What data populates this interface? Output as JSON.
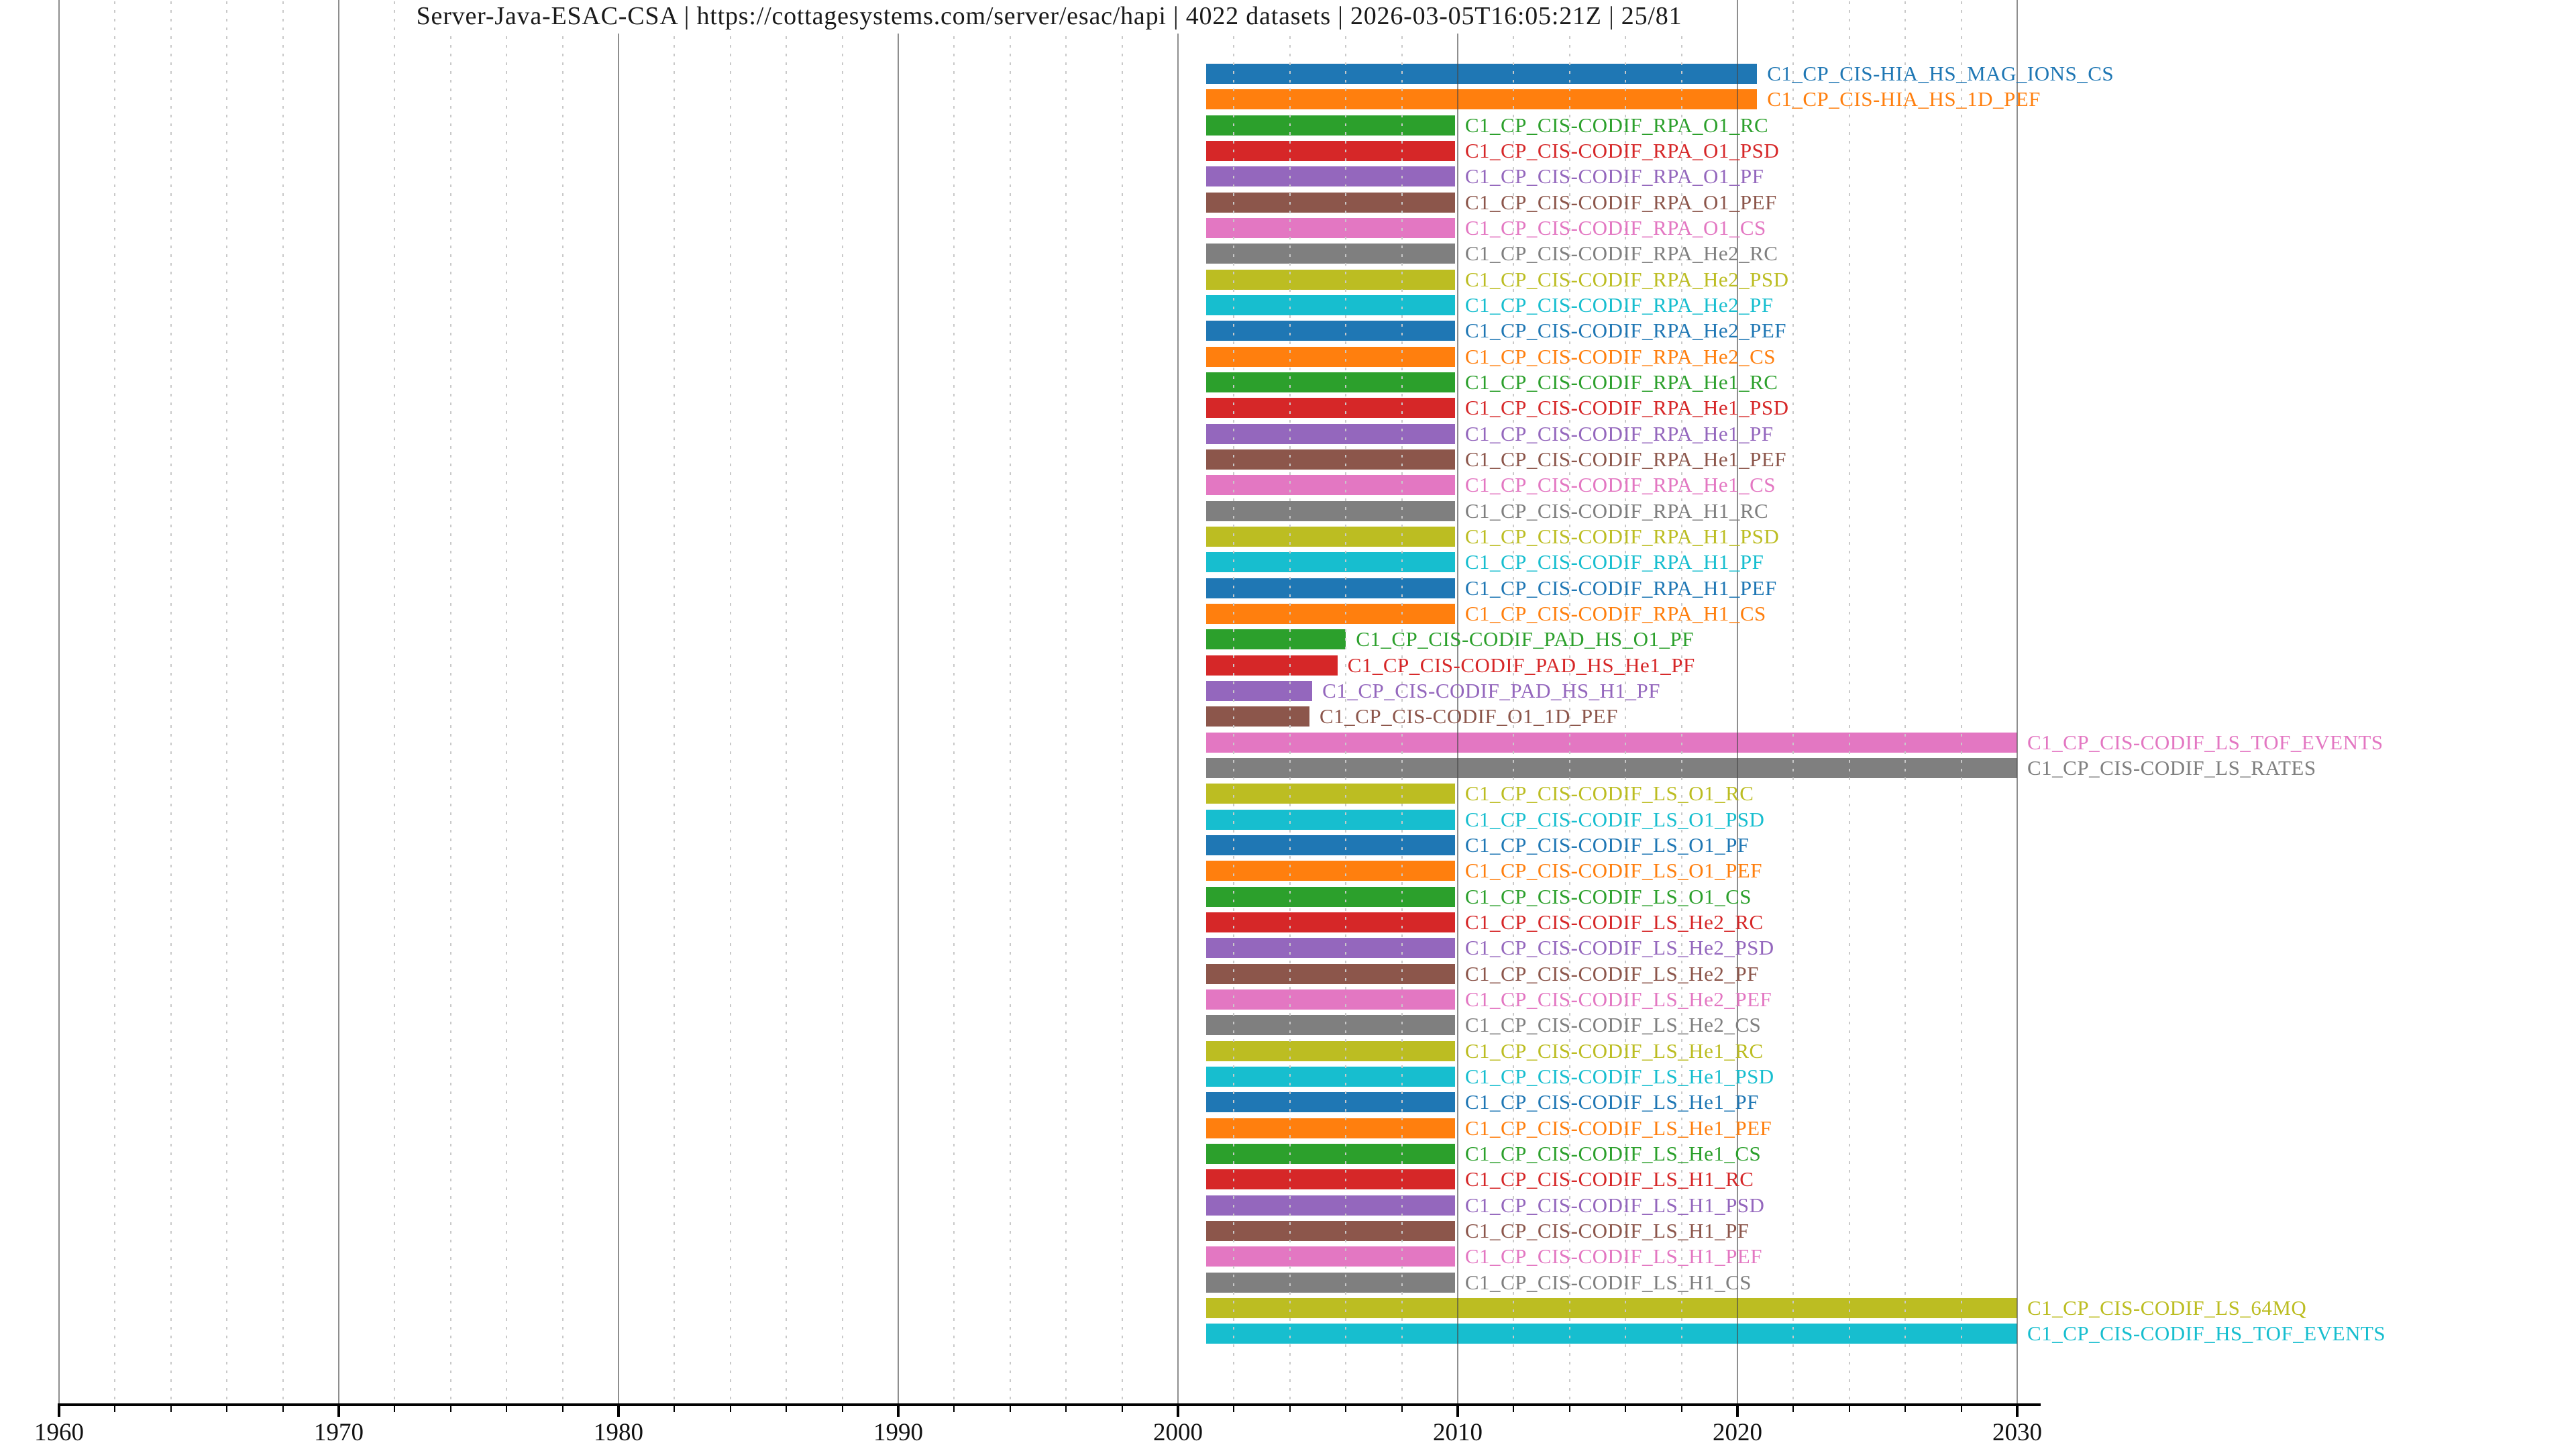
{
  "title": {
    "text": "Server-Java-ESAC-CSA | https://cottagesystems.com/server/esac/hapi | 4022 datasets | 2026-03-05T16:05:21Z | 25/81",
    "server_id": "Server-Java-ESAC-CSA",
    "server_url": "https://cottagesystems.com/server/esac/hapi",
    "dataset_count": "4022 datasets",
    "generated_timestamp": "2026-03-05T16:05:21Z",
    "page_indicator": "25/81"
  },
  "chart_data": {
    "type": "timeline",
    "title": "Server-Java-ESAC-CSA | https://cottagesystems.com/server/esac/hapi | 4022 datasets | 2026-03-05T16:05:21Z | 25/81",
    "xlabel": "",
    "ylabel": "",
    "x_axis": {
      "unit": "year",
      "range_start": 1960,
      "range_end": 2030.8,
      "major_tick_step": 10,
      "minor_tick_step": 2,
      "grid": "major solid gray, minor dotted light-gray"
    },
    "x_ticks": [
      {
        "year": 1960,
        "label": "1960"
      },
      {
        "year": 1970,
        "label": "1970"
      },
      {
        "year": 1980,
        "label": "1980"
      },
      {
        "year": 1990,
        "label": "1990"
      },
      {
        "year": 2000,
        "label": "2000"
      },
      {
        "year": 2010,
        "label": "2010"
      },
      {
        "year": 2020,
        "label": "2020"
      },
      {
        "year": 2030,
        "label": "2030"
      }
    ],
    "legend_position": "none",
    "bar_label_position": "right-of-bar, colored same as bar",
    "palette": [
      "#1f77b4",
      "#ff7f0e",
      "#2ca02c",
      "#d62728",
      "#9467bd",
      "#8c564b",
      "#e377c2",
      "#7f7f7f",
      "#bcbd22",
      "#17becf"
    ],
    "rows": [
      {
        "name": "C1_CP_CIS-HIA_HS_MAG_IONS_CS",
        "start": 2001.0,
        "end": 2020.7,
        "color": "#1f77b4"
      },
      {
        "name": "C1_CP_CIS-HIA_HS_1D_PEF",
        "start": 2001.0,
        "end": 2020.7,
        "color": "#ff7f0e"
      },
      {
        "name": "C1_CP_CIS-CODIF_RPA_O1_RC",
        "start": 2001.0,
        "end": 2009.9,
        "color": "#2ca02c"
      },
      {
        "name": "C1_CP_CIS-CODIF_RPA_O1_PSD",
        "start": 2001.0,
        "end": 2009.9,
        "color": "#d62728"
      },
      {
        "name": "C1_CP_CIS-CODIF_RPA_O1_PF",
        "start": 2001.0,
        "end": 2009.9,
        "color": "#9467bd"
      },
      {
        "name": "C1_CP_CIS-CODIF_RPA_O1_PEF",
        "start": 2001.0,
        "end": 2009.9,
        "color": "#8c564b"
      },
      {
        "name": "C1_CP_CIS-CODIF_RPA_O1_CS",
        "start": 2001.0,
        "end": 2009.9,
        "color": "#e377c2"
      },
      {
        "name": "C1_CP_CIS-CODIF_RPA_He2_RC",
        "start": 2001.0,
        "end": 2009.9,
        "color": "#7f7f7f"
      },
      {
        "name": "C1_CP_CIS-CODIF_RPA_He2_PSD",
        "start": 2001.0,
        "end": 2009.9,
        "color": "#bcbd22"
      },
      {
        "name": "C1_CP_CIS-CODIF_RPA_He2_PF",
        "start": 2001.0,
        "end": 2009.9,
        "color": "#17becf"
      },
      {
        "name": "C1_CP_CIS-CODIF_RPA_He2_PEF",
        "start": 2001.0,
        "end": 2009.9,
        "color": "#1f77b4"
      },
      {
        "name": "C1_CP_CIS-CODIF_RPA_He2_CS",
        "start": 2001.0,
        "end": 2009.9,
        "color": "#ff7f0e"
      },
      {
        "name": "C1_CP_CIS-CODIF_RPA_He1_RC",
        "start": 2001.0,
        "end": 2009.9,
        "color": "#2ca02c"
      },
      {
        "name": "C1_CP_CIS-CODIF_RPA_He1_PSD",
        "start": 2001.0,
        "end": 2009.9,
        "color": "#d62728"
      },
      {
        "name": "C1_CP_CIS-CODIF_RPA_He1_PF",
        "start": 2001.0,
        "end": 2009.9,
        "color": "#9467bd"
      },
      {
        "name": "C1_CP_CIS-CODIF_RPA_He1_PEF",
        "start": 2001.0,
        "end": 2009.9,
        "color": "#8c564b"
      },
      {
        "name": "C1_CP_CIS-CODIF_RPA_He1_CS",
        "start": 2001.0,
        "end": 2009.9,
        "color": "#e377c2"
      },
      {
        "name": "C1_CP_CIS-CODIF_RPA_H1_RC",
        "start": 2001.0,
        "end": 2009.9,
        "color": "#7f7f7f"
      },
      {
        "name": "C1_CP_CIS-CODIF_RPA_H1_PSD",
        "start": 2001.0,
        "end": 2009.9,
        "color": "#bcbd22"
      },
      {
        "name": "C1_CP_CIS-CODIF_RPA_H1_PF",
        "start": 2001.0,
        "end": 2009.9,
        "color": "#17becf"
      },
      {
        "name": "C1_CP_CIS-CODIF_RPA_H1_PEF",
        "start": 2001.0,
        "end": 2009.9,
        "color": "#1f77b4"
      },
      {
        "name": "C1_CP_CIS-CODIF_RPA_H1_CS",
        "start": 2001.0,
        "end": 2009.9,
        "color": "#ff7f0e"
      },
      {
        "name": "C1_CP_CIS-CODIF_PAD_HS_O1_PF",
        "start": 2001.0,
        "end": 2006.0,
        "color": "#2ca02c"
      },
      {
        "name": "C1_CP_CIS-CODIF_PAD_HS_He1_PF",
        "start": 2001.0,
        "end": 2005.7,
        "color": "#d62728"
      },
      {
        "name": "C1_CP_CIS-CODIF_PAD_HS_H1_PF",
        "start": 2001.0,
        "end": 2004.8,
        "color": "#9467bd"
      },
      {
        "name": "C1_CP_CIS-CODIF_O1_1D_PEF",
        "start": 2001.0,
        "end": 2004.7,
        "color": "#8c564b"
      },
      {
        "name": "C1_CP_CIS-CODIF_LS_TOF_EVENTS",
        "start": 2001.0,
        "end": 2030.0,
        "color": "#e377c2"
      },
      {
        "name": "C1_CP_CIS-CODIF_LS_RATES",
        "start": 2001.0,
        "end": 2030.0,
        "color": "#7f7f7f"
      },
      {
        "name": "C1_CP_CIS-CODIF_LS_O1_RC",
        "start": 2001.0,
        "end": 2009.9,
        "color": "#bcbd22"
      },
      {
        "name": "C1_CP_CIS-CODIF_LS_O1_PSD",
        "start": 2001.0,
        "end": 2009.9,
        "color": "#17becf"
      },
      {
        "name": "C1_CP_CIS-CODIF_LS_O1_PF",
        "start": 2001.0,
        "end": 2009.9,
        "color": "#1f77b4"
      },
      {
        "name": "C1_CP_CIS-CODIF_LS_O1_PEF",
        "start": 2001.0,
        "end": 2009.9,
        "color": "#ff7f0e"
      },
      {
        "name": "C1_CP_CIS-CODIF_LS_O1_CS",
        "start": 2001.0,
        "end": 2009.9,
        "color": "#2ca02c"
      },
      {
        "name": "C1_CP_CIS-CODIF_LS_He2_RC",
        "start": 2001.0,
        "end": 2009.9,
        "color": "#d62728"
      },
      {
        "name": "C1_CP_CIS-CODIF_LS_He2_PSD",
        "start": 2001.0,
        "end": 2009.9,
        "color": "#9467bd"
      },
      {
        "name": "C1_CP_CIS-CODIF_LS_He2_PF",
        "start": 2001.0,
        "end": 2009.9,
        "color": "#8c564b"
      },
      {
        "name": "C1_CP_CIS-CODIF_LS_He2_PEF",
        "start": 2001.0,
        "end": 2009.9,
        "color": "#e377c2"
      },
      {
        "name": "C1_CP_CIS-CODIF_LS_He2_CS",
        "start": 2001.0,
        "end": 2009.9,
        "color": "#7f7f7f"
      },
      {
        "name": "C1_CP_CIS-CODIF_LS_He1_RC",
        "start": 2001.0,
        "end": 2009.9,
        "color": "#bcbd22"
      },
      {
        "name": "C1_CP_CIS-CODIF_LS_He1_PSD",
        "start": 2001.0,
        "end": 2009.9,
        "color": "#17becf"
      },
      {
        "name": "C1_CP_CIS-CODIF_LS_He1_PF",
        "start": 2001.0,
        "end": 2009.9,
        "color": "#1f77b4"
      },
      {
        "name": "C1_CP_CIS-CODIF_LS_He1_PEF",
        "start": 2001.0,
        "end": 2009.9,
        "color": "#ff7f0e"
      },
      {
        "name": "C1_CP_CIS-CODIF_LS_He1_CS",
        "start": 2001.0,
        "end": 2009.9,
        "color": "#2ca02c"
      },
      {
        "name": "C1_CP_CIS-CODIF_LS_H1_RC",
        "start": 2001.0,
        "end": 2009.9,
        "color": "#d62728"
      },
      {
        "name": "C1_CP_CIS-CODIF_LS_H1_PSD",
        "start": 2001.0,
        "end": 2009.9,
        "color": "#9467bd"
      },
      {
        "name": "C1_CP_CIS-CODIF_LS_H1_PF",
        "start": 2001.0,
        "end": 2009.9,
        "color": "#8c564b"
      },
      {
        "name": "C1_CP_CIS-CODIF_LS_H1_PEF",
        "start": 2001.0,
        "end": 2009.9,
        "color": "#e377c2"
      },
      {
        "name": "C1_CP_CIS-CODIF_LS_H1_CS",
        "start": 2001.0,
        "end": 2009.9,
        "color": "#7f7f7f"
      },
      {
        "name": "C1_CP_CIS-CODIF_LS_64MQ",
        "start": 2001.0,
        "end": 2030.0,
        "color": "#bcbd22"
      },
      {
        "name": "C1_CP_CIS-CODIF_HS_TOF_EVENTS",
        "start": 2001.0,
        "end": 2030.0,
        "color": "#17becf"
      }
    ]
  }
}
